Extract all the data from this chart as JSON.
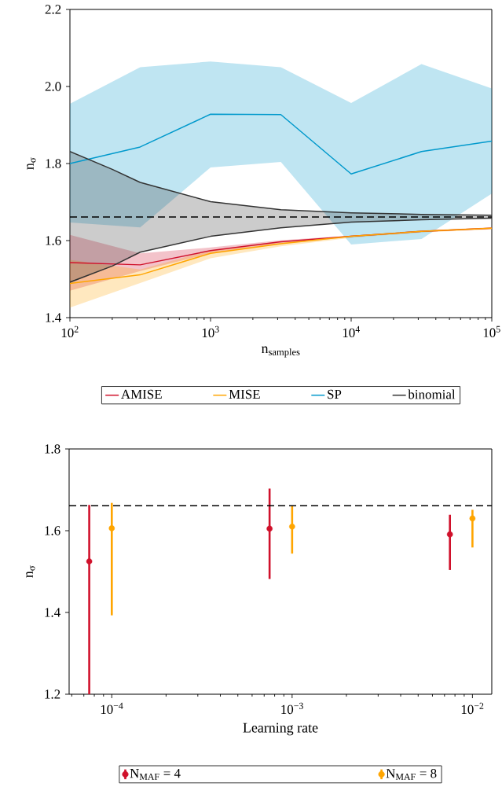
{
  "chart_data": [
    {
      "type": "line",
      "xlabel": "n$_{samples}$",
      "ylabel": "n$_{σ}$",
      "log": "x",
      "legend": "bottom",
      "x": [
        100,
        316,
        1000,
        3162,
        10000,
        31623,
        100000
      ],
      "xlim": [
        100,
        100000
      ],
      "xticks": [
        {
          "value": 100,
          "label": "10$^{2}$"
        },
        {
          "value": 1000,
          "label": "10$^{3}$"
        },
        {
          "value": 10000,
          "label": "10$^{4}$"
        },
        {
          "value": 100000,
          "label": "10$^{5}$"
        }
      ],
      "ylim": [
        1.4,
        2.2
      ],
      "yticks": [
        1.4,
        1.6,
        1.8,
        {
          "value": 2.0,
          "label": "2.0"
        },
        2.2
      ],
      "series": [
        {
          "name": "AMISE",
          "color": "#d0112b",
          "values": [
            1.543,
            1.537,
            1.574,
            1.597,
            1.611,
            1.624,
            1.632
          ],
          "lower": [
            1.47,
            1.521,
            1.567,
            1.592,
            1.609,
            1.622,
            1.63
          ],
          "upper": [
            1.615,
            1.567,
            1.582,
            1.601,
            1.613,
            1.626,
            1.634
          ]
        },
        {
          "name": "MISE",
          "color": "#ffa500",
          "values": [
            1.489,
            1.511,
            1.567,
            1.592,
            1.611,
            1.624,
            1.632
          ],
          "lower": [
            1.426,
            1.49,
            1.554,
            1.585,
            1.607,
            1.621,
            1.629
          ],
          "upper": [
            1.55,
            1.525,
            1.575,
            1.596,
            1.613,
            1.626,
            1.634
          ]
        },
        {
          "name": "SP",
          "color": "#0099cc",
          "values": [
            1.8,
            1.843,
            1.928,
            1.927,
            1.773,
            1.831,
            1.858
          ],
          "lower": [
            1.647,
            1.634,
            1.79,
            1.804,
            1.59,
            1.604,
            1.722
          ],
          "upper": [
            1.955,
            2.05,
            2.065,
            2.05,
            1.957,
            2.058,
            1.995
          ]
        },
        {
          "name": "binomial",
          "color": "#333333",
          "x": [
            100,
            200,
            316,
            1000,
            3162,
            10000,
            31623,
            100000
          ],
          "values": [
            1.831,
            1.785,
            1.751,
            1.701,
            1.68,
            1.672,
            1.668,
            1.666
          ],
          "lower": [
            1.492,
            1.534,
            1.57,
            1.611,
            1.633,
            1.648,
            1.654,
            1.658
          ],
          "upper": [
            1.831,
            1.785,
            1.751,
            1.701,
            1.68,
            1.672,
            1.668,
            1.666
          ]
        },
        {
          "color": "#333333",
          "x": [
            100,
            200,
            316,
            1000,
            3162,
            10000,
            31623,
            100000
          ],
          "values": [
            1.492,
            1.534,
            1.57,
            1.611,
            1.633,
            1.648,
            1.654,
            1.658
          ]
        }
      ],
      "ref_lines": [
        {
          "axis": "y",
          "value": 1.661,
          "color": "#000000",
          "line_style": "dashed"
        }
      ]
    },
    {
      "type": "scatter",
      "xlabel": "Learning rate",
      "ylabel": "n$_{σ}$",
      "log": "x",
      "legend": "bottom",
      "marker": "circle",
      "xlim": [
        5.8e-05,
        0.0128
      ],
      "xticks": [
        {
          "value": 0.0001,
          "label": "10$^{−4}$"
        },
        {
          "value": 0.001,
          "label": "10$^{−3}$"
        },
        {
          "value": 0.01,
          "label": "10$^{−2}$"
        }
      ],
      "ylim": [
        1.2,
        1.8
      ],
      "yticks": [
        1.2,
        1.4,
        1.6,
        1.8
      ],
      "series": [
        {
          "name": "N$_{MAF}$ = 4",
          "color": "#d0112b",
          "x": [
            7.5e-05,
            0.00075,
            0.0075
          ],
          "values": [
            1.525,
            1.605,
            1.591
          ],
          "errors": [
            [
              1.2,
              1.663
            ],
            [
              1.482,
              1.703
            ],
            [
              1.504,
              1.639
            ]
          ]
        },
        {
          "name": "N$_{MAF}$ = 8",
          "color": "#ffa500",
          "x": [
            0.0001,
            0.001,
            0.01
          ],
          "values": [
            1.606,
            1.61,
            1.63
          ],
          "errors": [
            [
              1.393,
              1.668
            ],
            [
              1.544,
              1.66
            ],
            [
              1.559,
              1.651
            ]
          ]
        }
      ],
      "ref_lines": [
        {
          "axis": "y",
          "value": 1.661,
          "color": "#000000",
          "line_style": "dashed"
        }
      ]
    }
  ]
}
